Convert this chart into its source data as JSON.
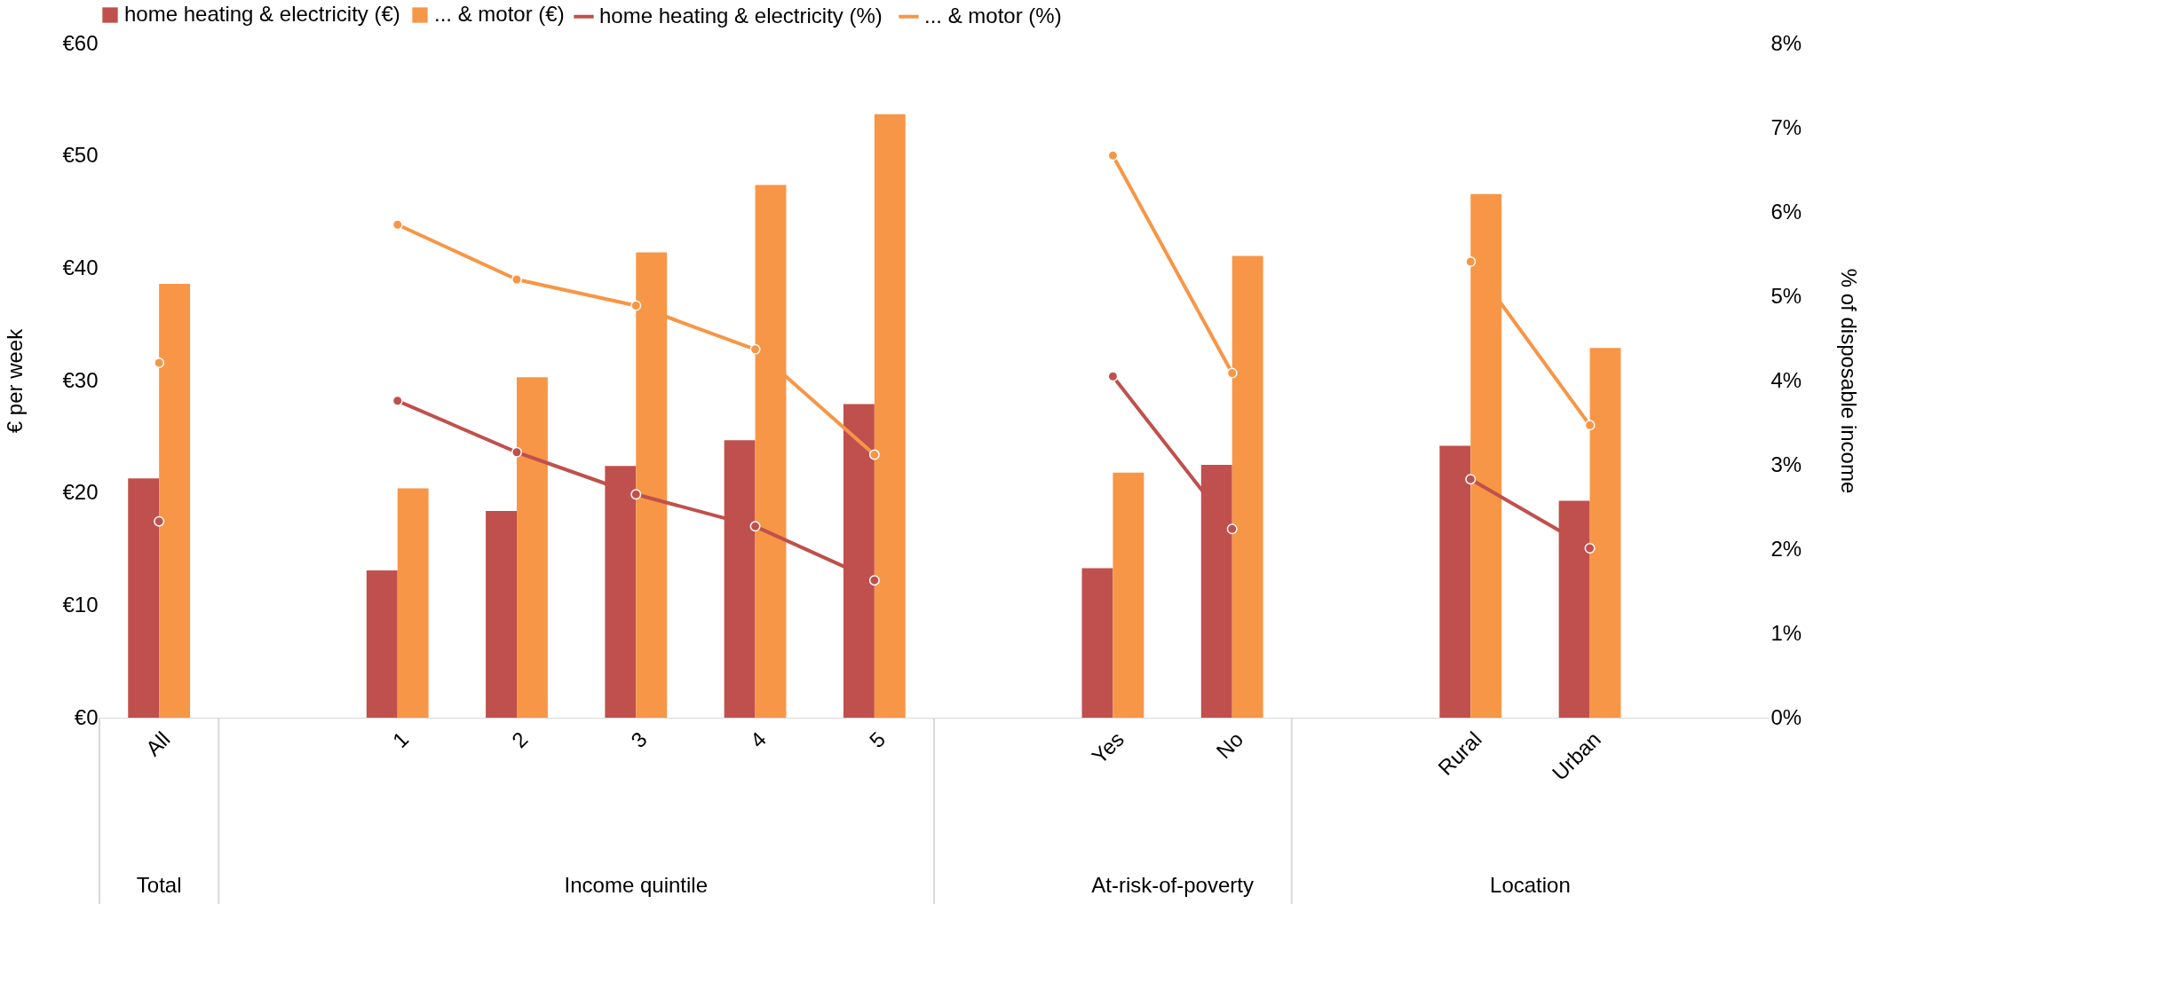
{
  "chart_data": {
    "type": "bar",
    "categories": [
      "All",
      null,
      "1",
      "2",
      "3",
      "4",
      "5",
      null,
      "Yes",
      "No",
      null,
      "Rural",
      "Urban",
      null
    ],
    "series": [
      {
        "name": "home heating & electricity (€)",
        "color": "#c0504d",
        "values": [
          21.3,
          null,
          13.1,
          18.4,
          22.4,
          24.7,
          27.9,
          null,
          13.3,
          22.5,
          null,
          24.2,
          19.3,
          null
        ]
      },
      {
        "name": "... & motor (€)",
        "color": "#f79646",
        "values": [
          38.6,
          null,
          20.4,
          30.3,
          41.4,
          47.4,
          53.7,
          null,
          21.8,
          41.1,
          null,
          46.6,
          32.9,
          null
        ]
      },
      {
        "name": "home heating & electricity (%)",
        "type": "line",
        "axis": "y2",
        "color": "#c0504d",
        "values": [
          2.33,
          null,
          3.76,
          3.15,
          2.65,
          2.27,
          1.63,
          null,
          4.05,
          2.24,
          null,
          2.83,
          2.01,
          null
        ]
      },
      {
        "name": "... & motor (%)",
        "type": "line",
        "axis": "y2",
        "color": "#f79646",
        "values": [
          4.21,
          null,
          5.85,
          5.2,
          4.89,
          4.37,
          3.12,
          null,
          6.67,
          4.09,
          null,
          5.41,
          3.47,
          null
        ]
      }
    ],
    "ylabel": "€ per week",
    "y2label": "% of disposable income",
    "ylim": [
      0,
      60
    ],
    "yticks": [
      {
        "value": 0,
        "label": "€0"
      },
      {
        "value": 10,
        "label": "€10"
      },
      {
        "value": 20,
        "label": "€20"
      },
      {
        "value": 30,
        "label": "€30"
      },
      {
        "value": 40,
        "label": "€40"
      },
      {
        "value": 50,
        "label": "€50"
      },
      {
        "value": 60,
        "label": "€60"
      }
    ],
    "y2lim": [
      0,
      8
    ],
    "y2ticks": [
      {
        "value": 0,
        "label": "0%"
      },
      {
        "value": 1,
        "label": "1%"
      },
      {
        "value": 2,
        "label": "2%"
      },
      {
        "value": 3,
        "label": "3%"
      },
      {
        "value": 4,
        "label": "4%"
      },
      {
        "value": 5,
        "label": "5%"
      },
      {
        "value": 6,
        "label": "6%"
      },
      {
        "value": 7,
        "label": "7%"
      },
      {
        "value": 8,
        "label": "8%"
      }
    ],
    "annotations": [
      "Total",
      "Income quintile",
      "At-risk-of-poverty",
      "Location"
    ],
    "legend": "top",
    "marker": "circle",
    "line_style": "solid",
    "grid": false
  }
}
